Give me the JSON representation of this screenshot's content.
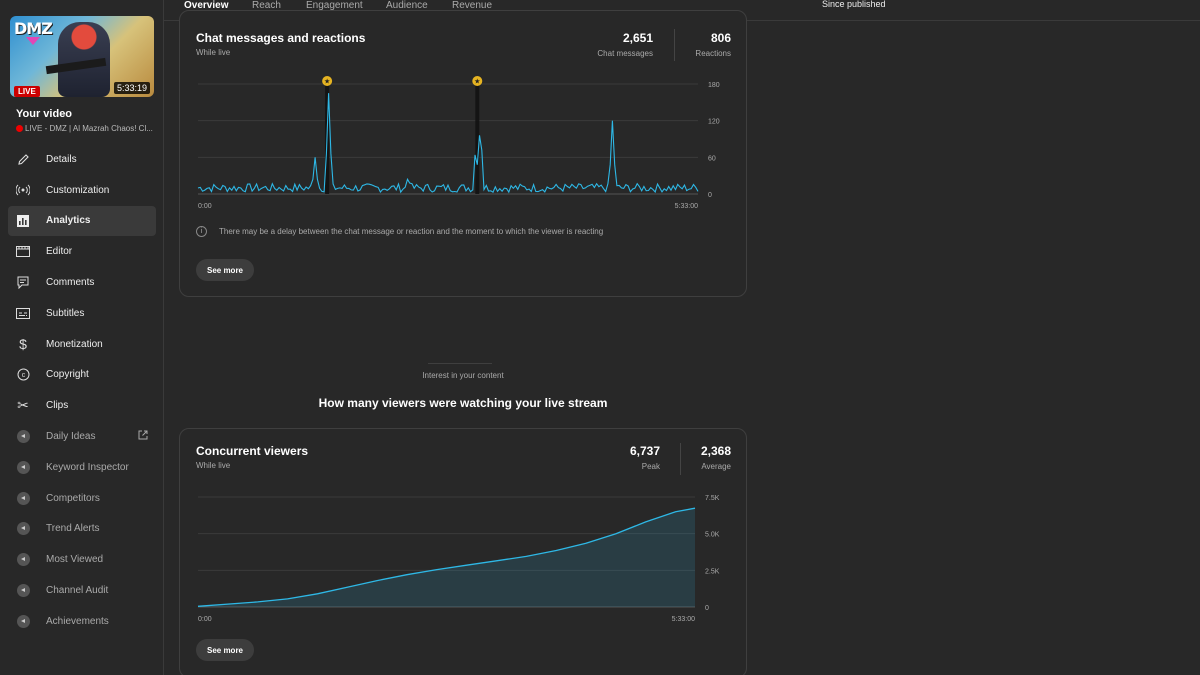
{
  "sidebar": {
    "thumbnail": {
      "logo_text": "DMZ",
      "live_badge": "LIVE",
      "duration": "5:33:19"
    },
    "your_video_label": "Your video",
    "video_title": "LIVE - DMZ | Al Mazrah Chaos! Cl...",
    "items": [
      {
        "label": "Details",
        "icon": "pencil-icon"
      },
      {
        "label": "Customization",
        "icon": "broadcast-icon"
      },
      {
        "label": "Analytics",
        "icon": "bar-chart-icon"
      },
      {
        "label": "Editor",
        "icon": "film-icon"
      },
      {
        "label": "Comments",
        "icon": "comment-icon"
      },
      {
        "label": "Subtitles",
        "icon": "subtitles-icon"
      },
      {
        "label": "Monetization",
        "icon": "dollar-icon"
      },
      {
        "label": "Copyright",
        "icon": "copyright-icon"
      },
      {
        "label": "Clips",
        "icon": "scissors-icon"
      },
      {
        "label": "Daily Ideas",
        "icon": "extension-icon"
      },
      {
        "label": "Keyword Inspector",
        "icon": "extension-icon"
      },
      {
        "label": "Competitors",
        "icon": "extension-icon"
      },
      {
        "label": "Trend Alerts",
        "icon": "extension-icon"
      },
      {
        "label": "Most Viewed",
        "icon": "extension-icon"
      },
      {
        "label": "Channel Audit",
        "icon": "extension-icon"
      },
      {
        "label": "Achievements",
        "icon": "extension-icon"
      }
    ]
  },
  "tabs": [
    "Overview",
    "Reach",
    "Engagement",
    "Audience",
    "Revenue"
  ],
  "since_published": "Since published",
  "chat_card": {
    "title": "Chat messages and reactions",
    "subtitle": "While live",
    "stats": [
      {
        "value": "2,651",
        "label": "Chat messages"
      },
      {
        "value": "806",
        "label": "Reactions"
      }
    ],
    "info_text": "There may be a delay between the chat message or reaction and the moment to which the viewer is reacting",
    "see_more": "See more"
  },
  "section": {
    "label": "Interest in your content",
    "heading": "How many viewers were watching your live stream"
  },
  "viewers_card": {
    "title": "Concurrent viewers",
    "subtitle": "While live",
    "stats": [
      {
        "value": "6,737",
        "label": "Peak"
      },
      {
        "value": "2,368",
        "label": "Average"
      }
    ],
    "see_more": "See more"
  },
  "chart_data": [
    {
      "type": "line",
      "x_tick_labels": [
        "0:00",
        "5:33:00"
      ],
      "y_tick_labels": [
        "180",
        "120",
        "60",
        "0"
      ],
      "ylim": [
        0,
        180
      ],
      "x_range_minutes": [
        0,
        333
      ],
      "color": "#2eb8e6",
      "markers": [
        {
          "x_minutes": 86
        },
        {
          "x_minutes": 186
        }
      ],
      "spikes": [
        {
          "x_minutes": 78,
          "y": 60
        },
        {
          "x_minutes": 87,
          "y": 165
        },
        {
          "x_minutes": 140,
          "y": 30
        },
        {
          "x_minutes": 185,
          "y": 80
        },
        {
          "x_minutes": 188,
          "y": 120
        },
        {
          "x_minutes": 276,
          "y": 120
        }
      ],
      "baseline_y": 10
    },
    {
      "type": "area",
      "x_tick_labels": [
        "0:00",
        "5:33:00"
      ],
      "y_tick_labels": [
        "7.5K",
        "5.0K",
        "2.5K",
        "0"
      ],
      "ylim": [
        0,
        7500
      ],
      "x": [
        0,
        20,
        40,
        60,
        80,
        100,
        120,
        140,
        160,
        180,
        200,
        220,
        240,
        260,
        280,
        300,
        320,
        333
      ],
      "values": [
        50,
        200,
        350,
        550,
        900,
        1350,
        1800,
        2200,
        2550,
        2850,
        3150,
        3450,
        3850,
        4350,
        5000,
        5800,
        6500,
        6737
      ],
      "color": "#2eb8e6"
    }
  ]
}
